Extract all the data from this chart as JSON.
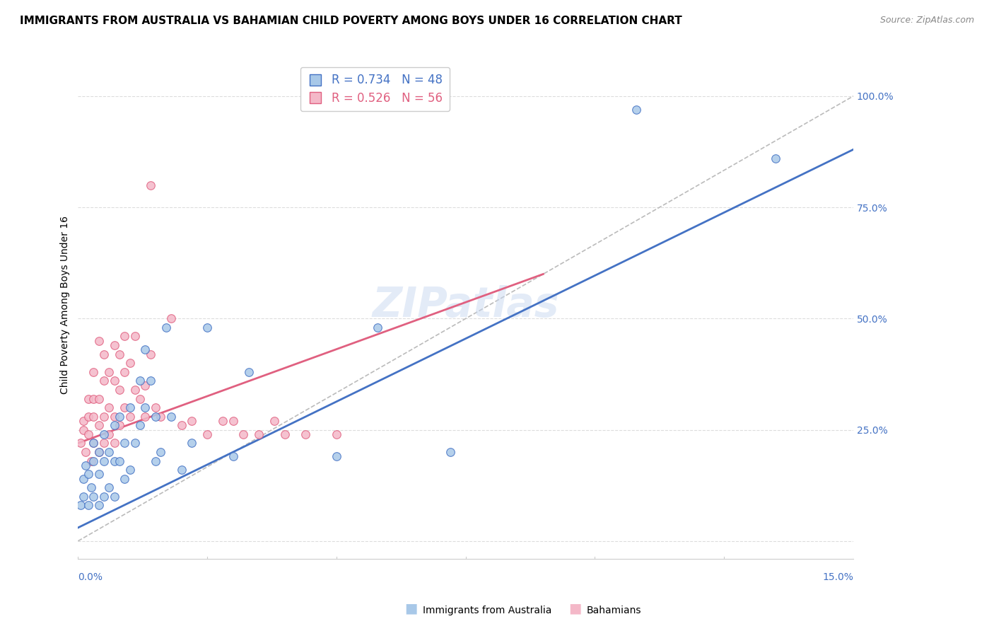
{
  "title": "IMMIGRANTS FROM AUSTRALIA VS BAHAMIAN CHILD POVERTY AMONG BOYS UNDER 16 CORRELATION CHART",
  "source": "Source: ZipAtlas.com",
  "ylabel": "Child Poverty Among Boys Under 16",
  "y_ticks": [
    0.0,
    0.25,
    0.5,
    0.75,
    1.0
  ],
  "y_tick_labels": [
    "",
    "25.0%",
    "50.0%",
    "75.0%",
    "100.0%"
  ],
  "x_range": [
    0.0,
    0.15
  ],
  "y_range": [
    -0.04,
    1.1
  ],
  "watermark": "ZIPatlas",
  "blue_scatter_x": [
    0.0005,
    0.001,
    0.001,
    0.0015,
    0.002,
    0.002,
    0.0025,
    0.003,
    0.003,
    0.003,
    0.004,
    0.004,
    0.004,
    0.005,
    0.005,
    0.005,
    0.006,
    0.006,
    0.007,
    0.007,
    0.007,
    0.008,
    0.008,
    0.009,
    0.009,
    0.01,
    0.01,
    0.011,
    0.012,
    0.012,
    0.013,
    0.013,
    0.014,
    0.015,
    0.015,
    0.016,
    0.017,
    0.018,
    0.02,
    0.022,
    0.025,
    0.03,
    0.033,
    0.05,
    0.058,
    0.072,
    0.108,
    0.135
  ],
  "blue_scatter_y": [
    0.08,
    0.1,
    0.14,
    0.17,
    0.08,
    0.15,
    0.12,
    0.1,
    0.18,
    0.22,
    0.08,
    0.15,
    0.2,
    0.1,
    0.18,
    0.24,
    0.12,
    0.2,
    0.1,
    0.18,
    0.26,
    0.18,
    0.28,
    0.14,
    0.22,
    0.16,
    0.3,
    0.22,
    0.26,
    0.36,
    0.3,
    0.43,
    0.36,
    0.18,
    0.28,
    0.2,
    0.48,
    0.28,
    0.16,
    0.22,
    0.48,
    0.19,
    0.38,
    0.19,
    0.48,
    0.2,
    0.97,
    0.86
  ],
  "pink_scatter_x": [
    0.0005,
    0.001,
    0.001,
    0.0015,
    0.002,
    0.002,
    0.002,
    0.0025,
    0.003,
    0.003,
    0.003,
    0.003,
    0.004,
    0.004,
    0.004,
    0.004,
    0.005,
    0.005,
    0.005,
    0.005,
    0.006,
    0.006,
    0.006,
    0.007,
    0.007,
    0.007,
    0.007,
    0.008,
    0.008,
    0.008,
    0.009,
    0.009,
    0.009,
    0.01,
    0.01,
    0.011,
    0.011,
    0.012,
    0.013,
    0.013,
    0.014,
    0.014,
    0.015,
    0.016,
    0.018,
    0.02,
    0.022,
    0.025,
    0.028,
    0.03,
    0.032,
    0.035,
    0.038,
    0.04,
    0.044,
    0.05
  ],
  "pink_scatter_y": [
    0.22,
    0.25,
    0.27,
    0.2,
    0.24,
    0.28,
    0.32,
    0.18,
    0.22,
    0.28,
    0.32,
    0.38,
    0.2,
    0.26,
    0.32,
    0.45,
    0.22,
    0.28,
    0.36,
    0.42,
    0.24,
    0.3,
    0.38,
    0.22,
    0.28,
    0.36,
    0.44,
    0.26,
    0.34,
    0.42,
    0.3,
    0.38,
    0.46,
    0.28,
    0.4,
    0.34,
    0.46,
    0.32,
    0.35,
    0.28,
    0.42,
    0.8,
    0.3,
    0.28,
    0.5,
    0.26,
    0.27,
    0.24,
    0.27,
    0.27,
    0.24,
    0.24,
    0.27,
    0.24,
    0.24,
    0.24
  ],
  "blue_line_x": [
    0.0,
    0.15
  ],
  "blue_line_y": [
    0.03,
    0.88
  ],
  "pink_line_x": [
    0.0,
    0.09
  ],
  "pink_line_y": [
    0.22,
    0.6
  ],
  "diag_line_x": [
    0.0,
    0.15
  ],
  "diag_line_y": [
    0.0,
    1.0
  ],
  "scatter_size": 70,
  "blue_color": "#a8c8e8",
  "pink_color": "#f4b8c8",
  "blue_line_color": "#4472c4",
  "pink_line_color": "#e06080",
  "diag_line_color": "#bbbbbb",
  "title_fontsize": 11,
  "axis_label_color": "#4472c4",
  "tick_color": "#4472c4",
  "grid_color": "#dddddd",
  "legend_blue_label": "R = 0.734   N = 48",
  "legend_pink_label": "R = 0.526   N = 56",
  "bottom_legend_blue": "Immigrants from Australia",
  "bottom_legend_pink": "Bahamians"
}
